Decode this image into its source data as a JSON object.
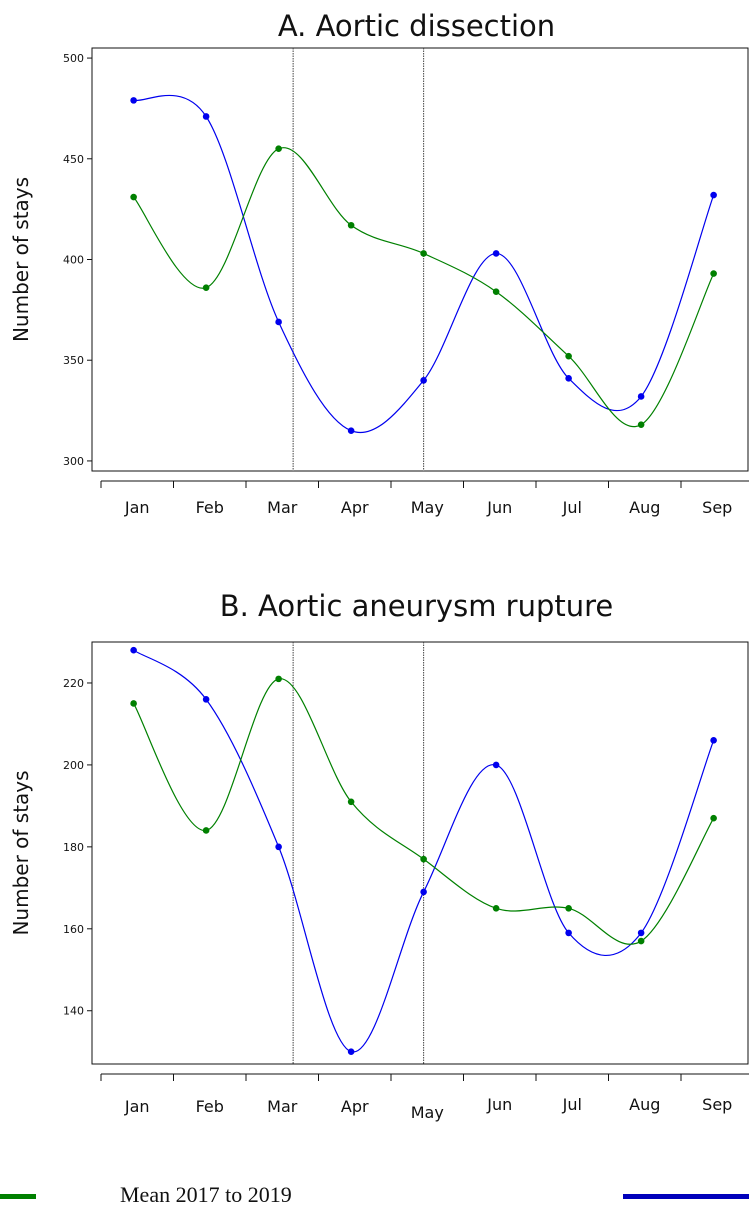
{
  "colors": {
    "blue": "#0000ee",
    "green": "#008000",
    "axis": "#111111",
    "marker_line": "#444444"
  },
  "chart_data": [
    {
      "type": "line",
      "title": "A. Aortic dissection",
      "ylabel": "Number of stays",
      "xlabel": "",
      "categories": [
        "Jan",
        "Feb",
        "Mar",
        "Apr",
        "May",
        "Jun",
        "Jul",
        "Aug",
        "Sep"
      ],
      "ylim": [
        295,
        505
      ],
      "yticks": [
        300,
        350,
        400,
        450,
        500
      ],
      "x_markers": [
        2.65,
        4.45
      ],
      "series": [
        {
          "color": "#0000ee",
          "x": [
            0.45,
            1.45,
            2.45,
            3.45,
            4.45,
            5.45,
            6.45,
            7.45,
            8.45
          ],
          "values": [
            479,
            471,
            369,
            315,
            340,
            403,
            341,
            332,
            432
          ]
        },
        {
          "color": "#008000",
          "x": [
            0.45,
            1.45,
            2.45,
            3.45,
            4.45,
            5.45,
            6.45,
            7.45,
            8.45
          ],
          "values": [
            431,
            386,
            455,
            417,
            403,
            384,
            352,
            318,
            393
          ]
        }
      ],
      "grid": false
    },
    {
      "type": "line",
      "title": "B. Aortic aneurysm rupture",
      "ylabel": "Number of stays",
      "xlabel": "",
      "categories": [
        "Jan",
        "Feb",
        "Mar",
        "Apr",
        "May",
        "Jun",
        "Jul",
        "Aug",
        "Sep"
      ],
      "ylim": [
        127,
        230
      ],
      "yticks": [
        140,
        160,
        180,
        200,
        220
      ],
      "x_markers": [
        2.65,
        4.45
      ],
      "series": [
        {
          "color": "#0000ee",
          "x": [
            0.45,
            1.45,
            2.45,
            3.45,
            4.45,
            5.45,
            6.45,
            7.45,
            8.45
          ],
          "values": [
            228,
            216,
            180,
            130,
            169,
            200,
            159,
            159,
            206
          ]
        },
        {
          "color": "#008000",
          "x": [
            0.45,
            1.45,
            2.45,
            3.45,
            4.45,
            5.45,
            6.45,
            7.45,
            8.45
          ],
          "values": [
            215,
            184,
            221,
            191,
            177,
            165,
            165,
            157,
            187
          ]
        }
      ],
      "grid": false
    }
  ],
  "legend": {
    "label": "Mean 2017 to 2019"
  }
}
